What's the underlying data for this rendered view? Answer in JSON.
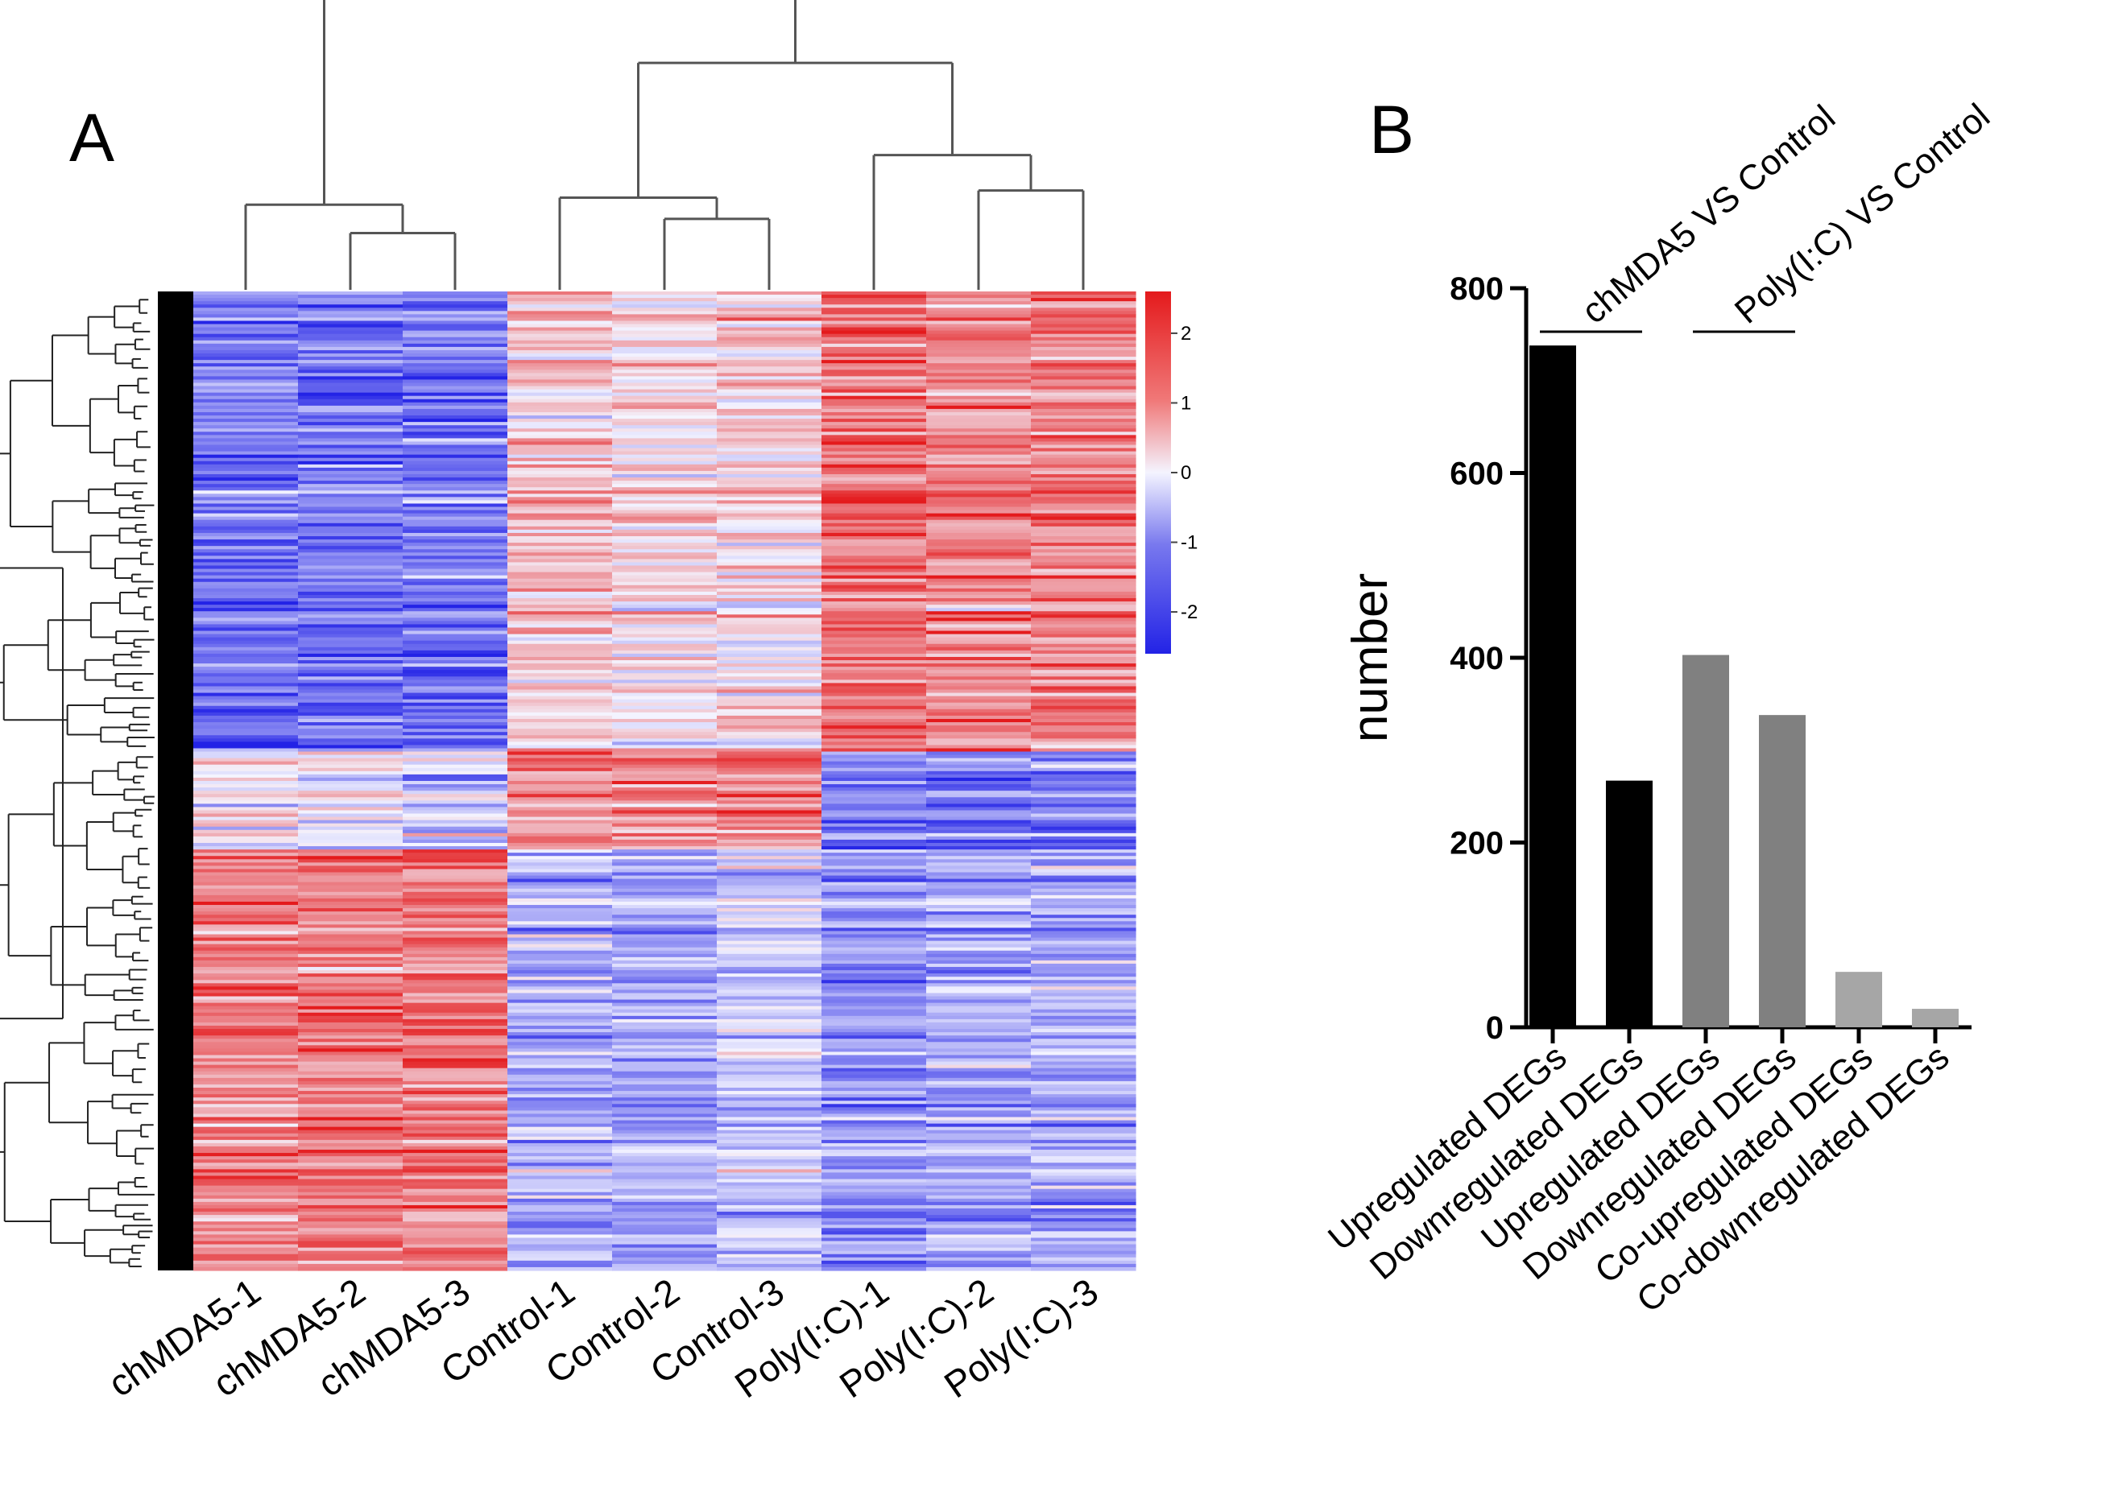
{
  "chart_data": [
    {
      "panel": "A",
      "type": "heatmap",
      "title": "",
      "columns": [
        "chMDA5-1",
        "chMDA5-2",
        "chMDA5-3",
        "Control-1",
        "Control-2",
        "Control-3",
        "Poly(I:C)-1",
        "Poly(I:C)-2",
        "Poly(I:C)-3"
      ],
      "colorbar": {
        "range": [
          -2.6,
          2.6
        ],
        "ticks": [
          2,
          1,
          0,
          -1,
          -2
        ],
        "tick_labels": [
          "2",
          "1",
          "0",
          "-1",
          "-2"
        ],
        "colors": {
          "low": "#2323e6",
          "mid": "#f4f4ff",
          "high": "#e41a1c"
        }
      },
      "row_clusters": [
        {
          "rows_fraction": 0.47,
          "mean_z": [
            -1.6,
            -1.6,
            -1.6,
            0.6,
            0.3,
            0.4,
            1.6,
            1.4,
            1.4
          ]
        },
        {
          "rows_fraction": 0.1,
          "mean_z": [
            0.1,
            0.1,
            -0.4,
            1.3,
            1.3,
            1.5,
            -1.3,
            -1.4,
            -1.3
          ]
        },
        {
          "rows_fraction": 0.43,
          "mean_z": [
            1.4,
            1.5,
            1.5,
            -0.9,
            -0.9,
            -0.5,
            -1.1,
            -1.0,
            -0.9
          ]
        }
      ],
      "column_dendrogram": {
        "merges": [
          {
            "left": 1,
            "right": 2,
            "height": 0.08
          },
          {
            "left": 0,
            "right": "1-2",
            "height": 0.12
          },
          {
            "left": 4,
            "right": 5,
            "height": 0.1
          },
          {
            "left": 3,
            "right": "4-5",
            "height": 0.13
          },
          {
            "left": 7,
            "right": 8,
            "height": 0.14
          },
          {
            "left": 6,
            "right": "7-8",
            "height": 0.19
          },
          {
            "left": "3-5",
            "right": "6-8",
            "height": 0.32
          },
          {
            "left": "0-2",
            "right": "3-8",
            "height": 0.42
          }
        ]
      }
    },
    {
      "panel": "B",
      "type": "bar",
      "title": "",
      "categories": [
        "Upregulated DEGs",
        "Downregulated DEGs",
        "Upregulated DEGs",
        "Downregulated DEGs",
        "Co-upregulated DEGs",
        "Co-downregulated DEGs"
      ],
      "values": [
        738,
        267,
        403,
        338,
        60,
        20
      ],
      "bar_colors": [
        "#000000",
        "#000000",
        "#808080",
        "#808080",
        "#a6a6a6",
        "#a6a6a6"
      ],
      "groups": [
        {
          "label": "chMDA5 VS Control",
          "categories": [
            0,
            1
          ]
        },
        {
          "label": "Poly(I:C) VS Control",
          "categories": [
            2,
            3
          ]
        }
      ],
      "xlabel": "",
      "ylabel": "number",
      "ylim": [
        0,
        800
      ],
      "yticks": [
        0,
        200,
        400,
        600,
        800
      ],
      "ytick_labels": [
        "0",
        "200",
        "400",
        "600",
        "800"
      ]
    }
  ]
}
